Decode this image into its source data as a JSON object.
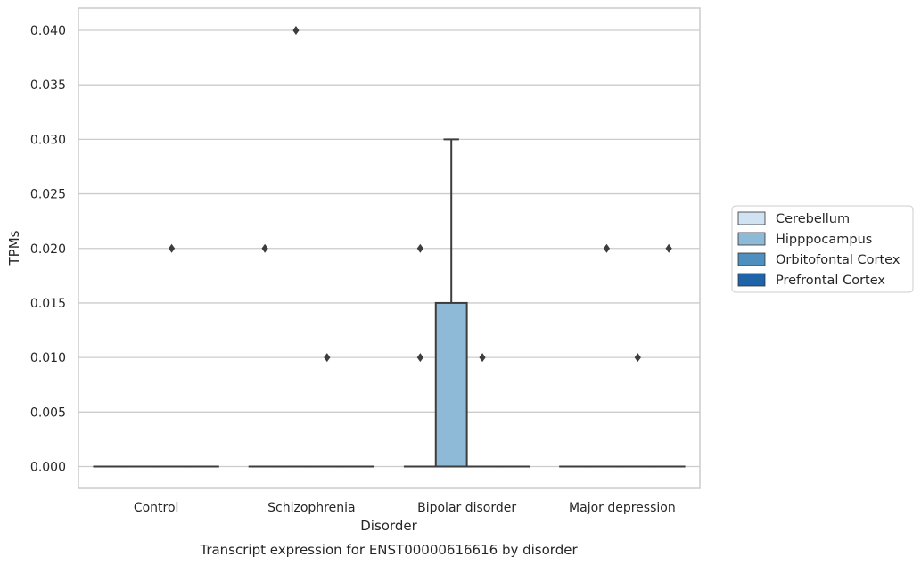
{
  "chart_data": {
    "type": "box",
    "title": "Transcript expression for ENST00000616616 by disorder",
    "xlabel": "Disorder",
    "ylabel": "TPMs",
    "ylim": [
      -0.002,
      0.042
    ],
    "yticks": [
      0.0,
      0.005,
      0.01,
      0.015,
      0.02,
      0.025,
      0.03,
      0.035,
      0.04
    ],
    "ytick_labels": [
      "0.000",
      "0.005",
      "0.010",
      "0.015",
      "0.020",
      "0.025",
      "0.030",
      "0.035",
      "0.040"
    ],
    "grid": "horizontal",
    "legend_position": "right",
    "categories": [
      "Control",
      "Schizophrenia",
      "Bipolar disorder",
      "Major depression"
    ],
    "series": [
      {
        "name": "Cerebellum",
        "color": "#d1e2f2",
        "boxes": [
          {
            "q1": 0,
            "median": 0,
            "q3": 0,
            "whisker_low": 0,
            "whisker_high": 0,
            "outliers": []
          },
          {
            "q1": 0,
            "median": 0,
            "q3": 0,
            "whisker_low": 0,
            "whisker_high": 0,
            "outliers": [
              0.02
            ]
          },
          {
            "q1": 0,
            "median": 0,
            "q3": 0,
            "whisker_low": 0,
            "whisker_high": 0,
            "outliers": [
              0.02,
              0.01
            ]
          },
          {
            "q1": 0,
            "median": 0,
            "q3": 0,
            "whisker_low": 0,
            "whisker_high": 0,
            "outliers": []
          }
        ]
      },
      {
        "name": "Hipppocampus",
        "color": "#8ebad8",
        "boxes": [
          {
            "q1": 0,
            "median": 0,
            "q3": 0,
            "whisker_low": 0,
            "whisker_high": 0,
            "outliers": []
          },
          {
            "q1": 0,
            "median": 0,
            "q3": 0,
            "whisker_low": 0,
            "whisker_high": 0,
            "outliers": [
              0.04
            ]
          },
          {
            "q1": 0,
            "median": 0,
            "q3": 0.015,
            "whisker_low": 0,
            "whisker_high": 0.03,
            "outliers": []
          },
          {
            "q1": 0,
            "median": 0,
            "q3": 0,
            "whisker_low": 0,
            "whisker_high": 0,
            "outliers": [
              0.02
            ]
          }
        ]
      },
      {
        "name": "Orbitofontal Cortex",
        "color": "#4f8fc0",
        "boxes": [
          {
            "q1": 0,
            "median": 0,
            "q3": 0,
            "whisker_low": 0,
            "whisker_high": 0,
            "outliers": [
              0.02
            ]
          },
          {
            "q1": 0,
            "median": 0,
            "q3": 0,
            "whisker_low": 0,
            "whisker_high": 0,
            "outliers": [
              0.01
            ]
          },
          {
            "q1": 0,
            "median": 0,
            "q3": 0,
            "whisker_low": 0,
            "whisker_high": 0,
            "outliers": [
              0.01
            ]
          },
          {
            "q1": 0,
            "median": 0,
            "q3": 0,
            "whisker_low": 0,
            "whisker_high": 0,
            "outliers": [
              0.01
            ]
          }
        ]
      },
      {
        "name": "Prefrontal Cortex",
        "color": "#1f63a8",
        "boxes": [
          {
            "q1": 0,
            "median": 0,
            "q3": 0,
            "whisker_low": 0,
            "whisker_high": 0,
            "outliers": []
          },
          {
            "q1": 0,
            "median": 0,
            "q3": 0,
            "whisker_low": 0,
            "whisker_high": 0,
            "outliers": []
          },
          {
            "q1": 0,
            "median": 0,
            "q3": 0,
            "whisker_low": 0,
            "whisker_high": 0,
            "outliers": []
          },
          {
            "q1": 0,
            "median": 0,
            "q3": 0,
            "whisker_low": 0,
            "whisker_high": 0,
            "outliers": [
              0.02
            ]
          }
        ]
      }
    ]
  }
}
